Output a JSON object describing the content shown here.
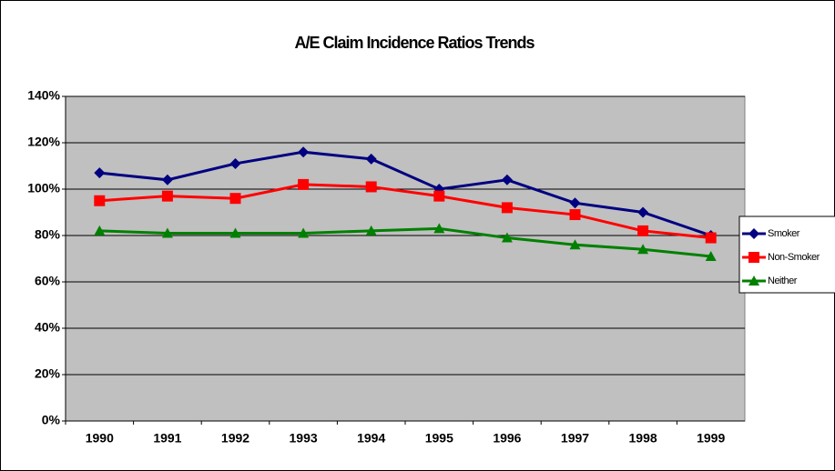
{
  "chart_data": {
    "type": "line",
    "title": "A/E Claim Incidence Ratios Trends",
    "categories": [
      "1990",
      "1991",
      "1992",
      "1993",
      "1994",
      "1995",
      "1996",
      "1997",
      "1998",
      "1999"
    ],
    "series": [
      {
        "name": "Smoker",
        "color": "#000080",
        "marker": "diamond",
        "values": [
          107,
          104,
          111,
          116,
          113,
          100,
          104,
          94,
          90,
          80
        ]
      },
      {
        "name": "Non-Smoker",
        "color": "#ff0000",
        "marker": "square",
        "values": [
          95,
          97,
          96,
          102,
          101,
          97,
          92,
          89,
          82,
          79
        ]
      },
      {
        "name": "Neither",
        "color": "#008000",
        "marker": "triangle",
        "values": [
          82,
          81,
          81,
          81,
          82,
          83,
          79,
          76,
          74,
          71
        ]
      }
    ],
    "ylim": [
      0,
      140
    ],
    "yticks": [
      {
        "value": 0,
        "label": "0%"
      },
      {
        "value": 20,
        "label": "20%"
      },
      {
        "value": 40,
        "label": "40%"
      },
      {
        "value": 60,
        "label": "60%"
      },
      {
        "value": 80,
        "label": "80%"
      },
      {
        "value": 100,
        "label": "100%"
      },
      {
        "value": 120,
        "label": "120%"
      },
      {
        "value": 140,
        "label": "140%"
      }
    ],
    "grid": true,
    "legend": "right",
    "plot_background": "#c0c0c0"
  }
}
